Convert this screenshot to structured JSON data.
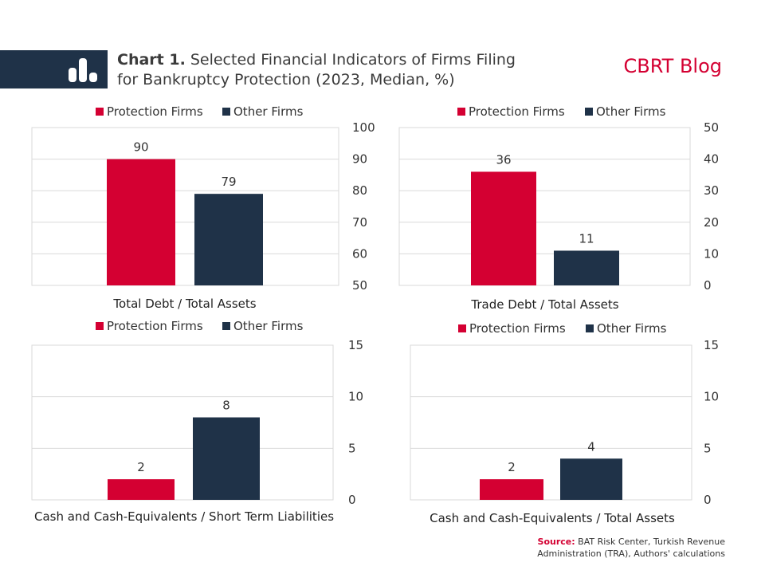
{
  "header": {
    "title_bold": "Chart 1.",
    "title_line1": "Selected Financial Indicators of Firms Filing",
    "title_line2": "for Bankruptcy Protection (2023, Median, %)",
    "brand": "CBRT Blog"
  },
  "source": {
    "label": "Source:",
    "text": "BAT Risk Center, Turkish Revenue Administration (TRA), Authors' calculations"
  },
  "colors": {
    "protection": "#d40032",
    "other": "#1f3248",
    "grid": "#d9d9d9",
    "brand": "#d40032"
  },
  "chart_data": [
    {
      "type": "bar",
      "categories": [
        "Total Debt / Total Assets"
      ],
      "series": [
        {
          "name": "Protection Firms",
          "values": [
            90
          ]
        },
        {
          "name": "Other Firms",
          "values": [
            79
          ]
        }
      ],
      "xlabel": "Total Debt / Total Assets",
      "ylim": [
        50,
        100
      ],
      "yticks": [
        50,
        60,
        70,
        80,
        90,
        100
      ],
      "y_axis_side": "right",
      "legend": "top",
      "grid": true
    },
    {
      "type": "bar",
      "categories": [
        "Trade Debt / Total Assets"
      ],
      "series": [
        {
          "name": "Protection Firms",
          "values": [
            36
          ]
        },
        {
          "name": "Other Firms",
          "values": [
            11
          ]
        }
      ],
      "xlabel": "Trade Debt / Total Assets",
      "ylim": [
        0,
        50
      ],
      "yticks": [
        0,
        10,
        20,
        30,
        40,
        50
      ],
      "y_axis_side": "right",
      "legend": "top",
      "grid": true
    },
    {
      "type": "bar",
      "categories": [
        "Cash and Cash-Equivalents / Short Term Liabilities"
      ],
      "series": [
        {
          "name": "Protection Firms",
          "values": [
            2
          ]
        },
        {
          "name": "Other Firms",
          "values": [
            8
          ]
        }
      ],
      "xlabel": "Cash and Cash-Equivalents / Short Term Liabilities",
      "ylim": [
        0,
        15
      ],
      "yticks": [
        0,
        5,
        10,
        15
      ],
      "y_axis_side": "right",
      "legend": "top",
      "grid": true
    },
    {
      "type": "bar",
      "categories": [
        "Cash and Cash-Equivalents / Total Assets"
      ],
      "series": [
        {
          "name": "Protection Firms",
          "values": [
            2
          ]
        },
        {
          "name": "Other Firms",
          "values": [
            4
          ]
        }
      ],
      "xlabel": "Cash and Cash-Equivalents / Total Assets",
      "ylim": [
        0,
        15
      ],
      "yticks": [
        0,
        5,
        10,
        15
      ],
      "y_axis_side": "right",
      "legend": "top",
      "grid": true
    }
  ]
}
